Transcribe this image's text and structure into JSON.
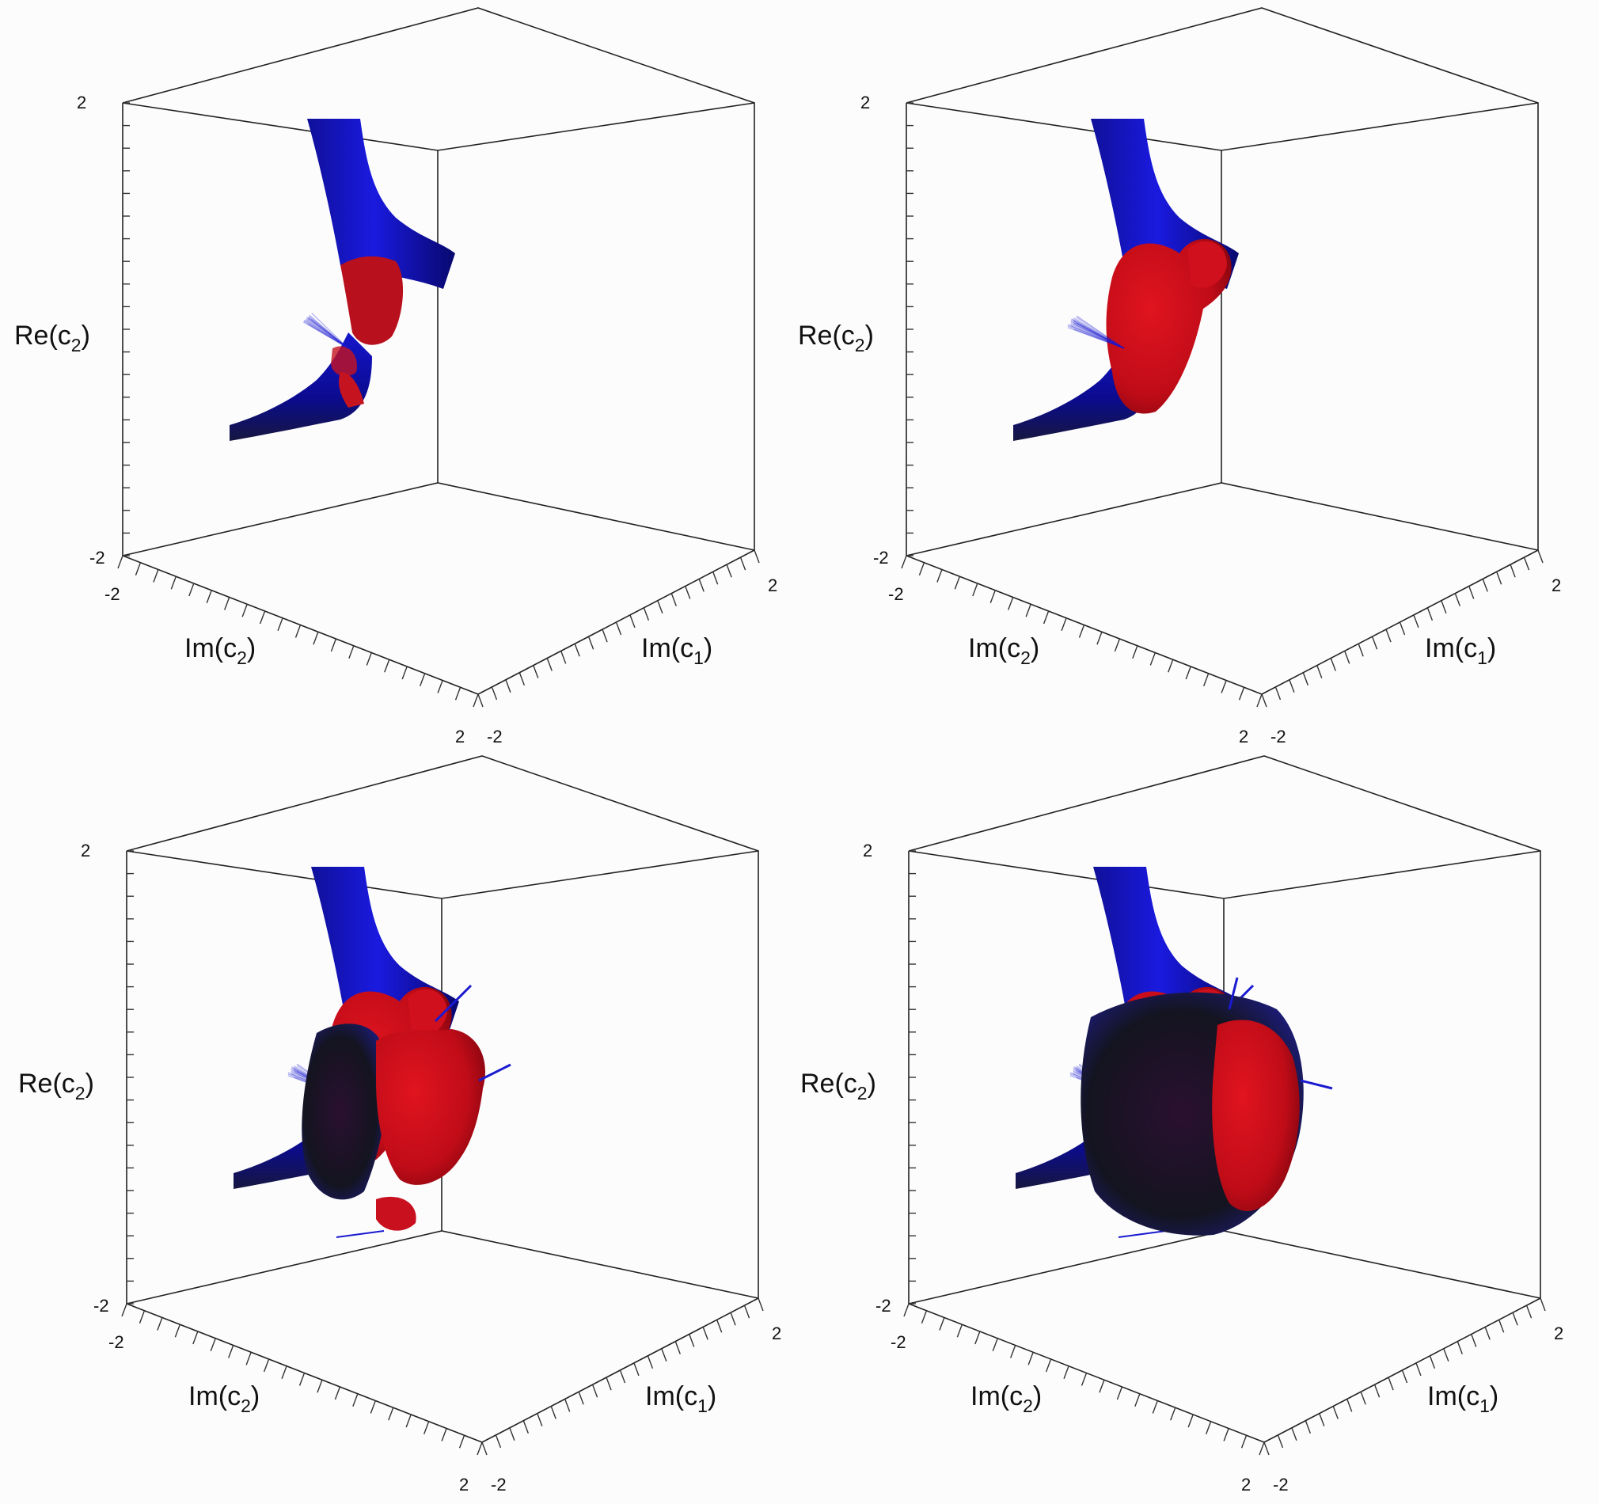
{
  "panels": [
    {
      "id": "panel-a",
      "level": 0
    },
    {
      "id": "panel-b",
      "level": 1
    },
    {
      "id": "panel-c",
      "level": 2
    },
    {
      "id": "panel-d",
      "level": 3
    }
  ],
  "axes": {
    "vertical": {
      "name": "Re(c",
      "sub": "2",
      "close": ")",
      "max": "2",
      "min": "-2"
    },
    "left": {
      "name": "Im(c",
      "sub": "2",
      "close": ")",
      "min": "-2",
      "max": "2"
    },
    "right": {
      "name": "Im(c",
      "sub": "1",
      "close": ")",
      "min": "-2",
      "max": "2"
    }
  },
  "colors": {
    "background": "#fcfcfd",
    "box_edges": "#222222",
    "surface_blue": "#0b0bb8",
    "surface_red": "#c8101e",
    "shadow": "#15151f"
  }
}
